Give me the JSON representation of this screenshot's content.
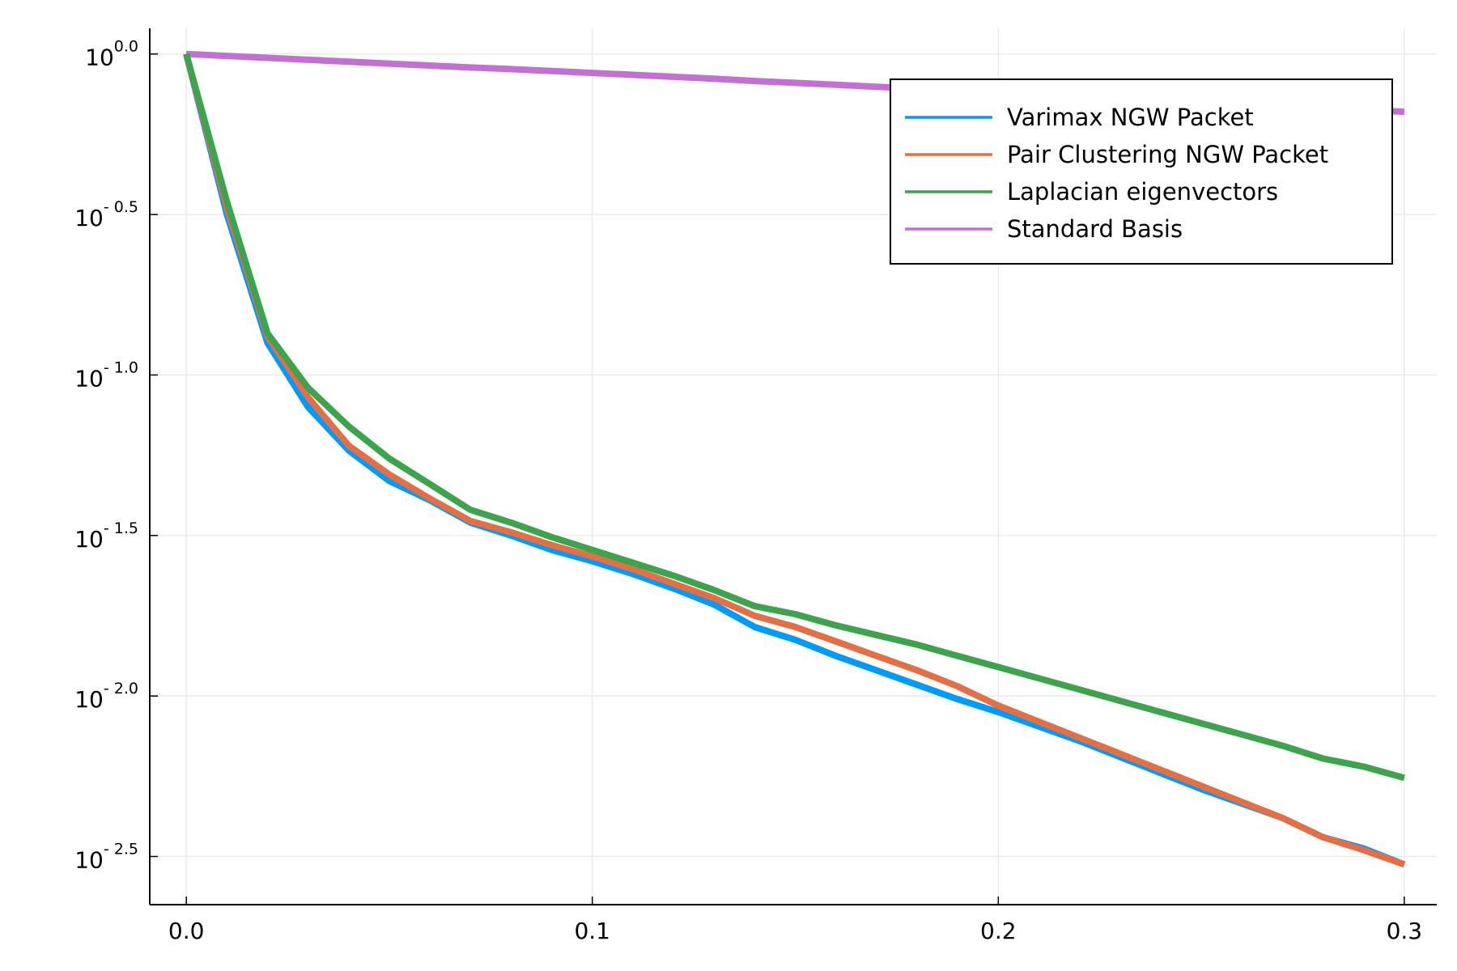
{
  "chart_data": {
    "type": "line",
    "title": "",
    "xlabel": "",
    "ylabel": "",
    "y_scale": "log10",
    "xlim": [
      -0.009,
      0.308
    ],
    "ylim_log10": [
      -2.65,
      0.08
    ],
    "x_ticks": [
      0.0,
      0.1,
      0.2,
      0.3
    ],
    "x_tick_labels": [
      "0.0",
      "0.1",
      "0.2",
      "0.3"
    ],
    "y_ticks_log10": [
      0.0,
      -0.5,
      -1.0,
      -1.5,
      -2.0,
      -2.5
    ],
    "y_tick_labels": [
      {
        "base": "10",
        "exp": "0.0"
      },
      {
        "base": "10",
        "exp": "- 0.5"
      },
      {
        "base": "10",
        "exp": "- 1.0"
      },
      {
        "base": "10",
        "exp": "- 1.5"
      },
      {
        "base": "10",
        "exp": "- 2.0"
      },
      {
        "base": "10",
        "exp": "- 2.5"
      }
    ],
    "grid": true,
    "legend_position": "top-right",
    "x": [
      0.0,
      0.01,
      0.02,
      0.03,
      0.04,
      0.05,
      0.06,
      0.07,
      0.08,
      0.09,
      0.1,
      0.11,
      0.12,
      0.13,
      0.14,
      0.15,
      0.16,
      0.17,
      0.18,
      0.19,
      0.2,
      0.21,
      0.22,
      0.23,
      0.24,
      0.25,
      0.26,
      0.27,
      0.28,
      0.29,
      0.3
    ],
    "series": [
      {
        "name": "Varimax NGW Packet",
        "color": "#009af9",
        "log10_values": [
          0.0,
          -0.5,
          -0.9,
          -1.1,
          -1.235,
          -1.33,
          -1.39,
          -1.46,
          -1.5,
          -1.545,
          -1.58,
          -1.62,
          -1.665,
          -1.715,
          -1.785,
          -1.825,
          -1.875,
          -1.92,
          -1.965,
          -2.01,
          -2.05,
          -2.095,
          -2.14,
          -2.19,
          -2.24,
          -2.29,
          -2.335,
          -2.38,
          -2.44,
          -2.475,
          -2.525
        ]
      },
      {
        "name": "Pair Clustering NGW Packet",
        "color": "#e26f46",
        "log10_values": [
          0.0,
          -0.48,
          -0.88,
          -1.07,
          -1.22,
          -1.31,
          -1.385,
          -1.455,
          -1.49,
          -1.53,
          -1.565,
          -1.605,
          -1.65,
          -1.695,
          -1.75,
          -1.785,
          -1.83,
          -1.875,
          -1.92,
          -1.97,
          -2.03,
          -2.08,
          -2.13,
          -2.18,
          -2.23,
          -2.28,
          -2.33,
          -2.38,
          -2.44,
          -2.48,
          -2.525
        ]
      },
      {
        "name": "Laplacian eigenvectors",
        "color": "#3da44d",
        "log10_values": [
          0.0,
          -0.46,
          -0.87,
          -1.04,
          -1.16,
          -1.26,
          -1.34,
          -1.42,
          -1.46,
          -1.505,
          -1.545,
          -1.585,
          -1.625,
          -1.67,
          -1.72,
          -1.745,
          -1.78,
          -1.81,
          -1.84,
          -1.875,
          -1.91,
          -1.945,
          -1.98,
          -2.015,
          -2.05,
          -2.085,
          -2.12,
          -2.155,
          -2.195,
          -2.22,
          -2.255
        ]
      },
      {
        "name": "Standard Basis",
        "color": "#c271d2",
        "log10_values": [
          0.0,
          -0.006,
          -0.012,
          -0.018,
          -0.024,
          -0.03,
          -0.036,
          -0.042,
          -0.047,
          -0.053,
          -0.059,
          -0.065,
          -0.071,
          -0.077,
          -0.084,
          -0.09,
          -0.096,
          -0.102,
          -0.108,
          -0.114,
          -0.12,
          -0.126,
          -0.132,
          -0.138,
          -0.144,
          -0.15,
          -0.156,
          -0.162,
          -0.168,
          -0.174,
          -0.18
        ]
      }
    ]
  }
}
